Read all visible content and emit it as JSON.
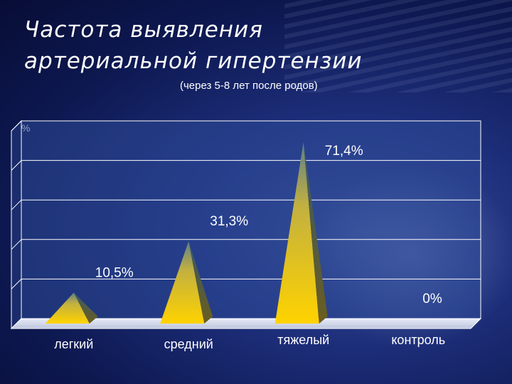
{
  "chart_data": {
    "type": "bar",
    "title": "Частота выявления артериальной гипертензии",
    "subtitle": "(через 5-8 лет после родов)",
    "ylabel": "%",
    "ylim": [
      0,
      80
    ],
    "categories": [
      "легкий",
      "средний",
      "тяжелый",
      "контроль"
    ],
    "values": [
      10.5,
      31.3,
      71.4,
      0
    ],
    "value_labels": [
      "10,5%",
      "31,3%",
      "71,4%",
      "0%"
    ],
    "bar_shape": "pyramid",
    "grid": true,
    "colors": {
      "bar_front": "#f2c800",
      "bar_side": "#7a6a2a",
      "bar_top": "#3f7f86",
      "plot_bg": "#2e4a98"
    }
  }
}
